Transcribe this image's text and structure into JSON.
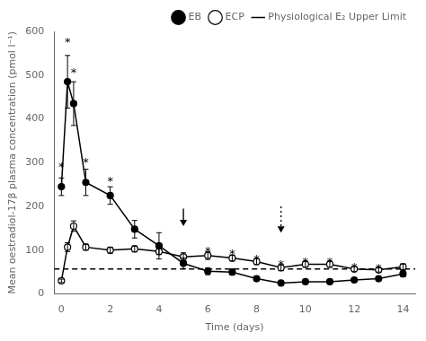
{
  "chart_data": {
    "type": "line",
    "xlabel": "Time (days)",
    "ylabel": "Mean oestradiol-17β plasma concentration (pmol l⁻¹)",
    "series": [
      {
        "name": "EB",
        "color": "#000000",
        "marker": "circle",
        "line_style": "solid",
        "x": [
          0,
          0.25,
          0.5,
          1,
          2,
          3,
          4,
          5,
          6,
          7,
          8,
          9,
          10,
          11,
          12,
          13,
          14
        ],
        "values": [
          245,
          485,
          435,
          255,
          225,
          148,
          110,
          70,
          52,
          50,
          35,
          25,
          28,
          28,
          32,
          35,
          46
        ],
        "errors": [
          20,
          60,
          50,
          30,
          20,
          20,
          30,
          12,
          8,
          7,
          5,
          4,
          4,
          4,
          5,
          5,
          7
        ]
      },
      {
        "name": "ECP",
        "color": "#000000",
        "marker": "open_circle",
        "line_style": "solid",
        "x": [
          0,
          0.25,
          0.5,
          1,
          2,
          3,
          4,
          5,
          6,
          7,
          8,
          9,
          10,
          11,
          12,
          13,
          14
        ],
        "values": [
          30,
          107,
          155,
          107,
          100,
          103,
          97,
          85,
          88,
          82,
          74,
          60,
          68,
          68,
          57,
          55,
          62
        ],
        "errors": [
          4,
          10,
          12,
          7,
          7,
          7,
          7,
          9,
          9,
          7,
          7,
          7,
          7,
          7,
          6,
          5,
          7
        ]
      },
      {
        "name": "Physiological E₂ Upper Limit",
        "type": "hline",
        "color": "#000000",
        "line_style": "dashed",
        "value": 57
      }
    ],
    "annotations": [
      {
        "type": "arrow",
        "x": 5,
        "y_start": 195,
        "y_end": 155,
        "line_style": "solid"
      },
      {
        "type": "arrow",
        "x": 9,
        "y_start": 200,
        "y_end": 140,
        "line_style": "dotted"
      },
      {
        "type": "text",
        "text": "*",
        "x": 0,
        "y": 295
      },
      {
        "type": "text",
        "text": "*",
        "x": 0.25,
        "y": 580
      },
      {
        "type": "text",
        "text": "*",
        "x": 0.5,
        "y": 510
      },
      {
        "type": "text",
        "text": "*",
        "x": 1,
        "y": 305
      },
      {
        "type": "text",
        "text": "*",
        "x": 2,
        "y": 262
      },
      {
        "type": "text",
        "text": "*",
        "x": 6,
        "y": 102
      },
      {
        "type": "text",
        "text": "*",
        "x": 7,
        "y": 95
      },
      {
        "type": "text",
        "text": "*",
        "x": 8,
        "y": 84
      },
      {
        "type": "text",
        "text": "*",
        "x": 9,
        "y": 70
      },
      {
        "type": "text",
        "text": "*",
        "x": 10,
        "y": 78
      },
      {
        "type": "text",
        "text": "*",
        "x": 11,
        "y": 78
      },
      {
        "type": "text",
        "text": "*",
        "x": 12,
        "y": 65
      },
      {
        "type": "text",
        "text": "*",
        "x": 13,
        "y": 63
      }
    ],
    "xlim": [
      -0.3,
      14.5
    ],
    "xticks": [
      0,
      2,
      4,
      6,
      8,
      10,
      12,
      14
    ],
    "ylim": [
      0,
      600
    ],
    "yticks": [
      0,
      100,
      200,
      300,
      400,
      500,
      600
    ],
    "grid": false,
    "legend": "upper right"
  }
}
